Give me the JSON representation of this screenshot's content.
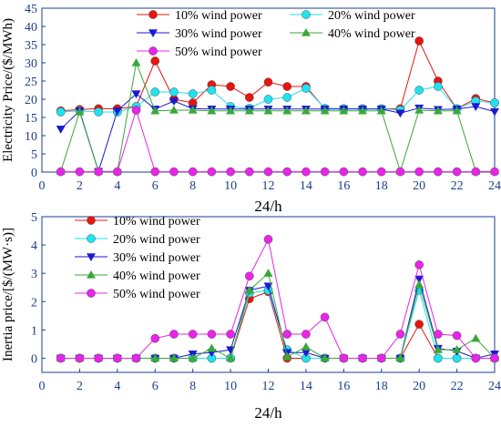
{
  "colors": {
    "axis": "#1a3f8f",
    "tick_label": "#1a3f8f",
    "text": "#000000",
    "series": [
      "#e8140f",
      "#1fe3ee",
      "#1a1ad4",
      "#3aa83a",
      "#e824e8"
    ]
  },
  "chart_data": [
    {
      "type": "line",
      "xlabel": "24/h",
      "ylabel": "Electricity Price/($/MWh)",
      "xlim": [
        0,
        24
      ],
      "ylim": [
        0,
        45
      ],
      "xticks": [
        0,
        2,
        4,
        6,
        8,
        10,
        12,
        14,
        16,
        18,
        20,
        22,
        24
      ],
      "yticks": [
        0,
        5,
        10,
        15,
        20,
        25,
        30,
        35,
        40,
        45
      ],
      "grid": false,
      "legend_placement": "top, two columns",
      "x": [
        1,
        2,
        3,
        4,
        5,
        6,
        7,
        8,
        9,
        10,
        11,
        12,
        13,
        14,
        15,
        16,
        17,
        18,
        19,
        20,
        21,
        22,
        23,
        24
      ],
      "series": [
        {
          "name": "10% wind power",
          "marker": "circle",
          "values": [
            16.8,
            17.2,
            17.4,
            17.4,
            18.0,
            30.5,
            20.0,
            19.0,
            24.0,
            23.5,
            20.5,
            24.7,
            23.5,
            23.5,
            17.4,
            17.4,
            17.4,
            17.4,
            17.4,
            36.0,
            25.0,
            17.4,
            20.2,
            19.0
          ]
        },
        {
          "name": "20% wind power",
          "marker": "circle",
          "values": [
            16.5,
            16.8,
            16.5,
            16.5,
            18.0,
            22.0,
            22.0,
            21.5,
            22.5,
            18.0,
            17.5,
            20.0,
            20.5,
            23.0,
            17.5,
            17.4,
            17.4,
            17.4,
            17.0,
            22.5,
            23.5,
            17.4,
            19.5,
            19.0
          ]
        },
        {
          "name": "30% wind power",
          "marker": "triangle-down",
          "values": [
            11.8,
            16.8,
            0.2,
            16.8,
            21.5,
            17.3,
            19.5,
            17.4,
            17.3,
            17.3,
            17.3,
            17.3,
            17.3,
            17.3,
            17.3,
            17.3,
            17.3,
            17.3,
            16.2,
            17.6,
            17.2,
            17.3,
            18.0,
            16.6
          ]
        },
        {
          "name": "40% wind power",
          "marker": "triangle-up",
          "values": [
            0.2,
            16.5,
            0.2,
            0.2,
            30.0,
            16.8,
            17.0,
            17.0,
            16.8,
            16.8,
            16.8,
            16.8,
            16.8,
            16.8,
            16.8,
            16.8,
            16.8,
            16.8,
            0.2,
            17.0,
            16.8,
            16.8,
            0.2,
            0.2
          ]
        },
        {
          "name": "50% wind power",
          "marker": "circle",
          "values": [
            0.1,
            0.1,
            0.1,
            0.1,
            17.0,
            0.1,
            0.1,
            0.1,
            0.1,
            0.1,
            0.1,
            0.1,
            0.1,
            0.1,
            0.1,
            0.1,
            0.1,
            0.1,
            0.1,
            0.1,
            0.1,
            0.1,
            0.1,
            0.1
          ]
        }
      ]
    },
    {
      "type": "line",
      "xlabel": "24/h",
      "ylabel": "Inertia price/[$/(MW·s)]",
      "xlim": [
        0,
        24
      ],
      "ylim": [
        -0.5,
        5
      ],
      "xticks": [
        0,
        2,
        4,
        6,
        8,
        10,
        12,
        14,
        16,
        18,
        20,
        22,
        24
      ],
      "yticks": [
        0,
        1,
        2,
        3,
        4,
        5
      ],
      "grid": false,
      "legend_placement": "top-left, single column",
      "x": [
        1,
        2,
        3,
        4,
        5,
        6,
        7,
        8,
        9,
        10,
        11,
        12,
        13,
        14,
        15,
        16,
        17,
        18,
        19,
        20,
        21,
        22,
        23,
        24
      ],
      "series": [
        {
          "name": "10% wind power",
          "marker": "circle",
          "values": [
            0,
            0,
            0,
            0,
            0,
            0,
            0,
            0,
            0,
            0,
            2.1,
            2.35,
            0,
            0,
            0,
            0,
            0,
            0,
            0,
            1.2,
            0,
            0,
            0,
            0
          ]
        },
        {
          "name": "20% wind power",
          "marker": "circle",
          "values": [
            0,
            0,
            0,
            0,
            0,
            0,
            0,
            0,
            0,
            0,
            2.3,
            2.4,
            0.3,
            0,
            0,
            0,
            0,
            0,
            0,
            2.4,
            0,
            0,
            0,
            0
          ]
        },
        {
          "name": "30% wind power",
          "marker": "triangle-down",
          "values": [
            0,
            0,
            0,
            0,
            0,
            0,
            0,
            0.15,
            0.2,
            0.3,
            2.4,
            2.55,
            0.2,
            0.2,
            0,
            0,
            0,
            0,
            0,
            2.8,
            0.35,
            0.25,
            0,
            0.15
          ]
        },
        {
          "name": "40% wind power",
          "marker": "triangle-up",
          "values": [
            0,
            0,
            0,
            0,
            0,
            0,
            0,
            0,
            0.35,
            0,
            2.4,
            3.0,
            0.05,
            0.4,
            0,
            0,
            0,
            0,
            0,
            2.6,
            0.3,
            0.3,
            0.7,
            0
          ]
        },
        {
          "name": "50% wind power",
          "marker": "circle",
          "values": [
            0,
            0,
            0,
            0,
            0,
            0.7,
            0.85,
            0.85,
            0.85,
            0.85,
            2.9,
            4.2,
            0.85,
            0.85,
            1.45,
            0,
            0,
            0,
            0.85,
            3.3,
            0.85,
            0.8,
            0,
            0
          ]
        }
      ]
    }
  ]
}
